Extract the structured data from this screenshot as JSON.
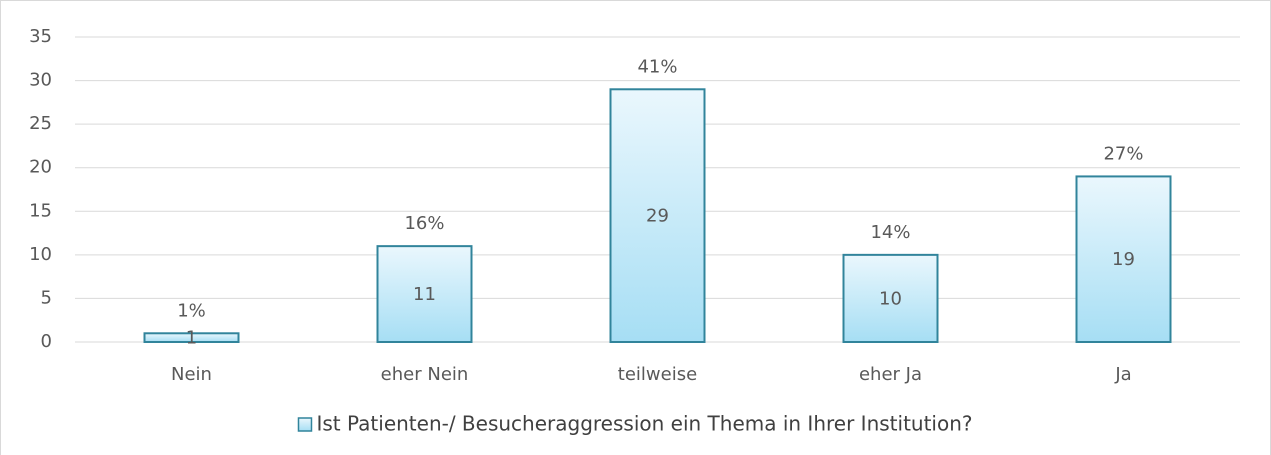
{
  "chart_data": {
    "type": "bar",
    "categories": [
      "Nein",
      "eher Nein",
      "teilweise",
      "eher Ja",
      "Ja"
    ],
    "series": [
      {
        "name": "Ist Patienten-/ Besucheraggression ein Thema in Ihrer Institution?",
        "color": "#31849b",
        "values": [
          1,
          11,
          29,
          10,
          19
        ]
      }
    ],
    "percent_labels": [
      "1%",
      "16%",
      "41%",
      "14%",
      "27%"
    ],
    "ylim": [
      0,
      35
    ],
    "yticks": [
      0,
      5,
      10,
      15,
      20,
      25,
      30,
      35
    ],
    "grid": true
  }
}
